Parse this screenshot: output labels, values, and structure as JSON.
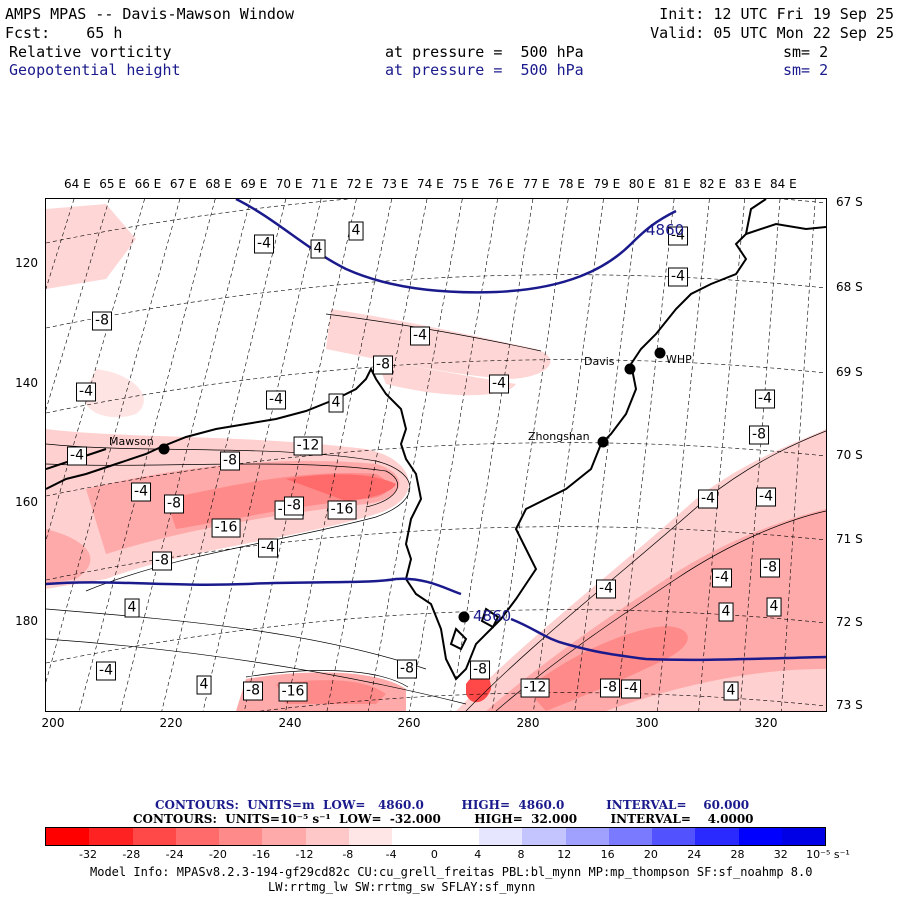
{
  "header": {
    "title": "AMPS MPAS -- Davis-Mawson Window",
    "forecast": "Fcst:    65 h",
    "init": "Init: 12 UTC Fri 19 Sep 25",
    "valid": "Valid: 05 UTC Mon 22 Sep 25",
    "field1_name": "Relative vorticity",
    "field1_level": "at pressure =  500 hPa",
    "field1_sm": "sm= 2",
    "field2_name": "Geopotential height",
    "field2_level": "at pressure =  500 hPa",
    "field2_sm": "sm= 2"
  },
  "map": {
    "lon_labels": [
      "64 E",
      "65 E",
      "66 E",
      "67 E",
      "68 E",
      "69 E",
      "70 E",
      "71 E",
      "72 E",
      "73 E",
      "74 E",
      "75 E",
      "76 E",
      "77 E",
      "78 E",
      "79 E",
      "80 E",
      "81 E",
      "82 E",
      "83 E",
      "84 E"
    ],
    "lat_labels": [
      "67 S",
      "68 S",
      "69 S",
      "70 S",
      "71 S",
      "72 S",
      "73 S"
    ],
    "y_ticks": [
      "120",
      "140",
      "160",
      "180"
    ],
    "x_ticks": [
      "200",
      "220",
      "240",
      "260",
      "280",
      "300",
      "320"
    ],
    "stations": [
      {
        "name": "Mawson"
      },
      {
        "name": "Davis"
      },
      {
        "name": "WHP"
      },
      {
        "name": "Zhongshan"
      },
      {
        "name": ""
      }
    ],
    "height_labels": [
      "4860",
      "4860"
    ],
    "vort_labels": [
      "-4",
      "4",
      "4",
      "-8",
      "-4",
      "-8",
      "-4",
      "-4",
      "4",
      "-4",
      "-4",
      "-4",
      "-8",
      "-12",
      "-8",
      "-4",
      "-8",
      "-16",
      "-12",
      "-16",
      "-4",
      "-8",
      "4",
      "-4",
      "4",
      "-8",
      "-16",
      "-8",
      "-4",
      "4",
      "-4",
      "-8",
      "-4",
      "-8",
      "-12",
      "-8",
      "-4",
      "-4",
      "4",
      "-4",
      "4",
      "-8",
      "-4"
    ]
  },
  "contour_info": {
    "line1": "CONTOURS:  UNITS=m  LOW=   4860.0         HIGH=  4860.0          INTERVAL=    60.000",
    "line2": "CONTOURS:  UNITS=10⁻⁵ s⁻¹  LOW=  -32.000        HIGH=  32.000        INTERVAL=    4.0000"
  },
  "colorbar": {
    "colors": [
      "#ff0000",
      "#ff2222",
      "#ff4848",
      "#ff6a6a",
      "#ff8a8a",
      "#ffaaaa",
      "#ffc8c8",
      "#ffe6e6",
      "#ffffff",
      "#ffffff",
      "#e6e6ff",
      "#c4c4ff",
      "#a0a0ff",
      "#7a7aff",
      "#5252ff",
      "#2a2aff",
      "#0000ff",
      "#0000e6"
    ],
    "ticks": [
      "-32",
      "-28",
      "-24",
      "-20",
      "-16",
      "-12",
      "-8",
      "-4",
      "0",
      "4",
      "8",
      "12",
      "16",
      "20",
      "24",
      "28",
      "32",
      "10⁻⁵ s⁻¹"
    ]
  },
  "footer": {
    "line1": "Model Info: MPASv8.2.3-194-gf29cd82c CU:cu_grell_freitas PBL:bl_mynn MP:mp_thompson SF:sf_noahmp 8.0",
    "line2": "LW:rrtmg_lw SW:rrtmg_sw SFLAY:sf_mynn"
  }
}
